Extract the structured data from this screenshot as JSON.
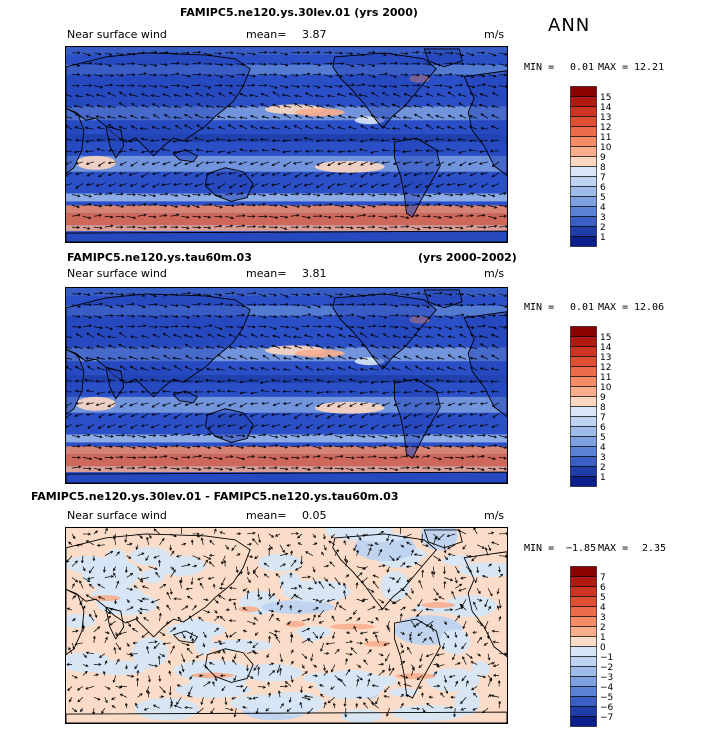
{
  "season": "ANN",
  "panels": [
    {
      "title": "FAMIPC5.ne120.ys.30lev.01 (yrs 2000)",
      "title_right": "",
      "variable": "Near surface wind",
      "mean_label": "mean=",
      "mean": "3.87",
      "units": "m/s",
      "min_label": "MIN =",
      "min": "0.01",
      "max_label": "MAX =",
      "max": "12.21",
      "levels": [
        "15",
        "14",
        "13",
        "12",
        "11",
        "10",
        "9",
        "8",
        "7",
        "6",
        "5",
        "4",
        "3",
        "2",
        "1"
      ],
      "colors": [
        "#8b0000",
        "#b01a10",
        "#cc3322",
        "#de5033",
        "#eb6c48",
        "#f38c66",
        "#f8ad8d",
        "#fbd6c0",
        "#d9e6f7",
        "#bed3f1",
        "#9fbbea",
        "#7ea0e0",
        "#5b82d4",
        "#3a5fc4",
        "#1f3da8",
        "#0a1f8a"
      ],
      "background": "#2b4fc7"
    },
    {
      "title": "FAMIPC5.ne120.ys.tau60m.03",
      "title_right": "(yrs 2000-2002)",
      "variable": "Near surface wind",
      "mean_label": "mean=",
      "mean": "3.81",
      "units": "m/s",
      "min_label": "MIN =",
      "min": "0.01",
      "max_label": "MAX =",
      "max": "12.06",
      "levels": [
        "15",
        "14",
        "13",
        "12",
        "11",
        "10",
        "9",
        "8",
        "7",
        "6",
        "5",
        "4",
        "3",
        "2",
        "1"
      ],
      "colors": [
        "#8b0000",
        "#b01a10",
        "#cc3322",
        "#de5033",
        "#eb6c48",
        "#f38c66",
        "#f8ad8d",
        "#fbd6c0",
        "#d9e6f7",
        "#bed3f1",
        "#9fbbea",
        "#7ea0e0",
        "#5b82d4",
        "#3a5fc4",
        "#1f3da8",
        "#0a1f8a"
      ],
      "background": "#2b4fc7"
    },
    {
      "title": "FAMIPC5.ne120.ys.30lev.01 - FAMIPC5.ne120.ys.tau60m.03",
      "title_right": "",
      "variable": "Near surface wind",
      "mean_label": "mean=",
      "mean": "0.05",
      "units": "m/s",
      "min_label": "MIN =",
      "min": "−1.85",
      "max_label": "MAX =",
      "max": "2.35",
      "levels": [
        "7",
        "6",
        "5",
        "4",
        "3",
        "2",
        "1",
        "0",
        "−1",
        "−2",
        "−3",
        "−4",
        "−5",
        "−6",
        "−7"
      ],
      "colors": [
        "#8b0000",
        "#b01a10",
        "#cc3322",
        "#de5033",
        "#eb6c48",
        "#f38c66",
        "#f8ad8d",
        "#fbdcc8",
        "#d6e6f7",
        "#bed3f1",
        "#9fbbea",
        "#7ea0e0",
        "#5b82d4",
        "#3a5fc4",
        "#1f3da8",
        "#0a1f8a"
      ],
      "background": "#fbdcc8"
    }
  ]
}
